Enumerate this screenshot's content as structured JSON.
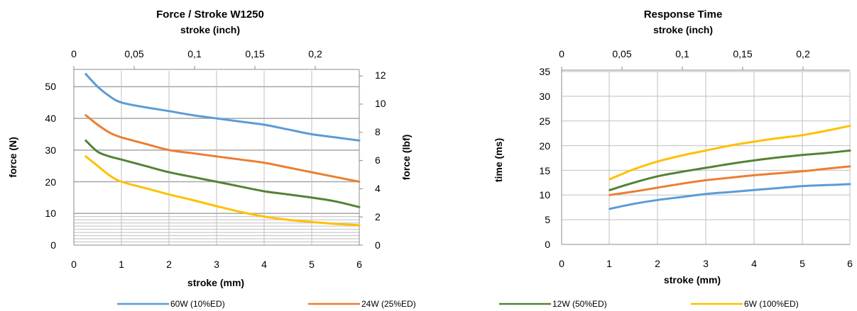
{
  "chart_data": [
    {
      "type": "line",
      "title": "Force / Stroke  W1250",
      "top_xlabel": "stroke (inch)",
      "xlabel": "stroke (mm)",
      "ylabel": "force (N)",
      "y2label": "force (lbf)",
      "xlim": [
        0,
        6
      ],
      "ylim": [
        0,
        55
      ],
      "x2lim": [
        0,
        0.236
      ],
      "y2lim": [
        0,
        12.36
      ],
      "xticks": [
        "0",
        "1",
        "2",
        "3",
        "4",
        "5",
        "6"
      ],
      "yticks": [
        "0",
        "10",
        "20",
        "30",
        "40",
        "50"
      ],
      "x2ticks": [
        "0",
        "0,05",
        "0,1",
        "0,15",
        "0,2"
      ],
      "y2ticks": [
        "0",
        "2",
        "4",
        "6",
        "8",
        "10",
        "12"
      ],
      "grid": true,
      "series": [
        {
          "name": "60W (10%ED)",
          "color": "#5b9bd5",
          "x": [
            0.25,
            0.5,
            0.75,
            1,
            1.5,
            2,
            2.5,
            3,
            3.5,
            4,
            4.5,
            5,
            5.5,
            6
          ],
          "y": [
            54,
            50,
            47,
            45,
            43.5,
            42.3,
            41,
            40,
            39,
            38,
            36.5,
            35,
            34,
            33
          ]
        },
        {
          "name": "24W (25%ED)",
          "color": "#ed7d31",
          "x": [
            0.25,
            0.5,
            0.75,
            1,
            1.5,
            2,
            2.5,
            3,
            3.5,
            4,
            4.5,
            5,
            5.5,
            6
          ],
          "y": [
            41,
            38,
            35.5,
            34,
            32,
            30,
            29,
            28,
            27,
            26,
            24.5,
            23,
            21.5,
            20
          ]
        },
        {
          "name": "12W  (50%ED)",
          "color": "#548235",
          "x": [
            0.25,
            0.5,
            0.75,
            1,
            1.5,
            2,
            2.5,
            3,
            3.5,
            4,
            4.5,
            5,
            5.5,
            6
          ],
          "y": [
            33,
            29.5,
            28,
            27,
            25,
            23,
            21.5,
            20,
            18.5,
            17,
            16,
            15,
            13.8,
            12
          ]
        },
        {
          "name": "6W (100%ED)",
          "color": "#ffc000",
          "x": [
            0.25,
            0.5,
            0.75,
            1,
            1.5,
            2,
            2.5,
            3,
            3.5,
            4,
            4.5,
            5,
            5.5,
            6
          ],
          "y": [
            28,
            25,
            22,
            20,
            18,
            16,
            14.2,
            12.3,
            10.5,
            9,
            8,
            7.3,
            6.7,
            6.3
          ]
        }
      ]
    },
    {
      "type": "line",
      "title": "Response Time",
      "top_xlabel": "stroke (inch)",
      "xlabel": "stroke (mm)",
      "ylabel": "time (ms)",
      "xlim": [
        0,
        6
      ],
      "ylim": [
        0,
        35
      ],
      "x2lim": [
        0,
        0.236
      ],
      "xticks": [
        "0",
        "1",
        "2",
        "3",
        "4",
        "5",
        "6"
      ],
      "yticks": [
        "0",
        "5",
        "10",
        "15",
        "20",
        "25",
        "30",
        "35"
      ],
      "x2ticks": [
        "0",
        "0,05",
        "0,1",
        "0,15",
        "0,2"
      ],
      "grid": true,
      "series": [
        {
          "name": "60W (10%ED)",
          "color": "#5b9bd5",
          "x": [
            1,
            1.5,
            2,
            2.5,
            3,
            3.5,
            4,
            4.5,
            5,
            5.5,
            6
          ],
          "y": [
            7.2,
            8.2,
            9,
            9.6,
            10.2,
            10.6,
            11,
            11.4,
            11.8,
            12,
            12.2
          ]
        },
        {
          "name": "24W (25%ED)",
          "color": "#ed7d31",
          "x": [
            1,
            1.5,
            2,
            2.5,
            3,
            3.5,
            4,
            4.5,
            5,
            5.5,
            6
          ],
          "y": [
            10,
            10.7,
            11.5,
            12.3,
            13,
            13.5,
            14,
            14.4,
            14.8,
            15.3,
            15.8
          ]
        },
        {
          "name": "12W  (50%ED)",
          "color": "#548235",
          "x": [
            1,
            1.5,
            2,
            2.5,
            3,
            3.5,
            4,
            4.5,
            5,
            5.5,
            6
          ],
          "y": [
            11,
            12.5,
            13.8,
            14.7,
            15.5,
            16.3,
            17,
            17.6,
            18.1,
            18.5,
            19
          ]
        },
        {
          "name": "6W (100%ED)",
          "color": "#ffc000",
          "x": [
            1,
            1.5,
            2,
            2.5,
            3,
            3.5,
            4,
            4.5,
            5,
            5.5,
            6
          ],
          "y": [
            13.2,
            15.2,
            16.8,
            18,
            19,
            20,
            20.8,
            21.5,
            22.1,
            23,
            24
          ]
        }
      ]
    }
  ],
  "legend": {
    "placement": "bottom",
    "items": [
      {
        "label": "60W (10%ED)",
        "color": "#5b9bd5"
      },
      {
        "label": "24W (25%ED)",
        "color": "#ed7d31"
      },
      {
        "label": "12W  (50%ED)",
        "color": "#548235"
      },
      {
        "label": "6W (100%ED)",
        "color": "#ffc000"
      }
    ]
  }
}
